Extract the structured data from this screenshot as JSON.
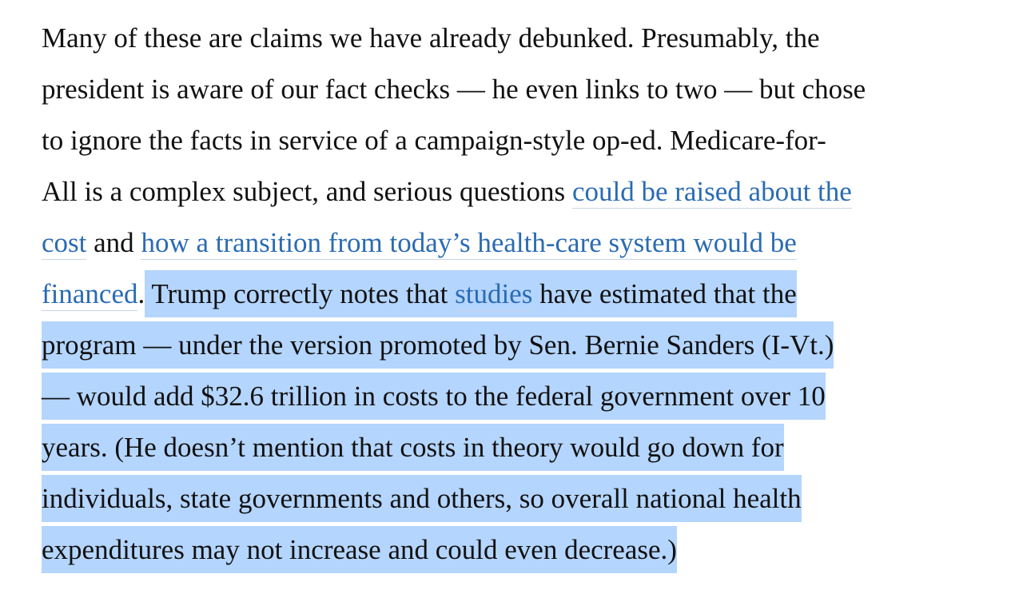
{
  "article": {
    "lines": [
      {
        "t1": "Many of these are claims we have already debunked. Presumably, the"
      },
      {
        "t1": "president is aware of our fact checks — he even links to two — but chose"
      },
      {
        "t1": "to ignore the facts in service of a campaign-style op-ed. Medicare-for-"
      },
      {
        "t1": "All is a complex subject, and serious questions ",
        "link1": "could be raised about the"
      },
      {
        "link1": "cost",
        "t2": " and ",
        "link2": "how a transition from today’s health-care system would be"
      },
      {
        "link1": "financed",
        "t2": ".",
        "s1": " Trump correctly notes that ",
        "link2": "studies",
        "s2": " have estimated that the"
      },
      {
        "s1": "program — under the version promoted by Sen. Bernie Sanders (I-Vt.)"
      },
      {
        "s1": "— would add $32.6 trillion in costs to the federal government over 10"
      },
      {
        "s1": "years. (He doesn’t mention that costs in theory would go down for"
      },
      {
        "s1": "individuals, state governments and others, so overall national health"
      },
      {
        "s1": "expenditures may not increase and could even decrease.)"
      }
    ]
  },
  "colors": {
    "text": "#111111",
    "link": "#2a6bb3",
    "selection": "#b4d5fe"
  }
}
